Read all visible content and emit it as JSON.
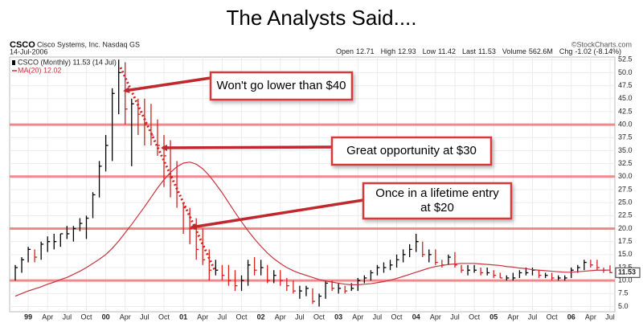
{
  "chart_data": {
    "type": "ohlc",
    "title": "The Analysts Said....",
    "symbol": "CSCO",
    "company": "Cisco Systems, Inc. Nasdaq GS",
    "date": "14-Jul-2006",
    "source": "©StockCharts.com",
    "stats": [
      {
        "label": "Open",
        "value": 12.71
      },
      {
        "label": "High",
        "value": 12.93
      },
      {
        "label": "Low",
        "value": 11.42
      },
      {
        "label": "Last",
        "value": 11.53
      },
      {
        "label": "Volume",
        "value": "562.6M"
      },
      {
        "label": "Chg",
        "value": "-1.02 (-8.14%)"
      }
    ],
    "categories": [
      null,
      null,
      "99",
      null,
      null,
      "Apr",
      null,
      null,
      "Jul",
      null,
      null,
      "Oct",
      null,
      null,
      "00",
      null,
      null,
      "Apr",
      null,
      null,
      "Jul",
      null,
      null,
      "Oct",
      null,
      null,
      "01",
      null,
      null,
      "Apr",
      null,
      null,
      "Jul",
      null,
      null,
      "Oct",
      null,
      null,
      "02",
      null,
      null,
      "Apr",
      null,
      null,
      "Jul",
      null,
      null,
      "Oct",
      null,
      null,
      "03",
      null,
      null,
      "Apr",
      null,
      null,
      "Jul",
      null,
      null,
      "Oct",
      null,
      null,
      "04",
      null,
      null,
      "Apr",
      null,
      null,
      "Jul",
      null,
      null,
      "Oct",
      null,
      null,
      "05",
      null,
      null,
      "Apr",
      null,
      null,
      "Jul",
      null,
      null,
      "Oct",
      null,
      null,
      "06",
      null,
      null,
      "Apr",
      null,
      null,
      "Jul"
    ],
    "series": [
      {
        "name": "CSCO (Monthly) 11.53 (14 Jul)",
        "up_color": "#000000",
        "down_color": "#d42020",
        "high": [
          13,
          14.5,
          16.5,
          16,
          17.5,
          18.5,
          19,
          19,
          20.5,
          20.5,
          22,
          22.5,
          27,
          33,
          38,
          47,
          52.5,
          52,
          45,
          45,
          45,
          44,
          41,
          38,
          37,
          33,
          25,
          24,
          22,
          20,
          16,
          14,
          13,
          13,
          12,
          11,
          14,
          14.5,
          14,
          13,
          12,
          12,
          10.5,
          10,
          9,
          9,
          8.5,
          7.5,
          10,
          10,
          9.5,
          9,
          9.5,
          10.5,
          11,
          12,
          13,
          13.5,
          14,
          15,
          16,
          17,
          19,
          17.5,
          16,
          16,
          14,
          15,
          15.5,
          13,
          13,
          13,
          12.5,
          12.5,
          12,
          11.5,
          11,
          11.5,
          12,
          12.5,
          12.5,
          12,
          11.5,
          11.5,
          11,
          11,
          12.5,
          13,
          14,
          14,
          14,
          12.5,
          12.93
        ],
        "low": [
          10,
          11.5,
          13.5,
          13.5,
          14,
          15.5,
          16,
          16.5,
          18,
          17.5,
          19.5,
          18,
          22,
          26,
          31,
          33,
          42,
          40,
          32,
          38,
          36,
          36,
          34,
          28,
          26,
          24,
          19,
          17,
          14,
          13,
          10,
          11,
          10,
          9,
          8,
          8,
          9,
          11,
          11,
          9.5,
          9.5,
          9,
          8,
          7.5,
          6.5,
          7,
          5.5,
          5,
          6.5,
          8,
          7.5,
          7.5,
          8,
          8,
          9.5,
          10,
          11,
          11.5,
          12,
          12.5,
          13.5,
          14.5,
          15.5,
          14.5,
          13.5,
          13,
          12.5,
          13,
          12.5,
          11.5,
          11,
          11.5,
          11,
          11,
          10.5,
          10.5,
          10,
          10,
          10.5,
          11,
          11,
          10.5,
          10.5,
          10,
          10,
          10,
          10.5,
          11.5,
          12,
          12.5,
          12,
          11.5,
          11.42
        ],
        "close": [
          12.5,
          14,
          16,
          14.5,
          17,
          17.5,
          17.5,
          19,
          19,
          20,
          21,
          22,
          26.5,
          32,
          36,
          46,
          50,
          43,
          44,
          42,
          40,
          38,
          36,
          34,
          30,
          27,
          24,
          20,
          16,
          14,
          12,
          12,
          11,
          10,
          9,
          10,
          13,
          12,
          12.5,
          10,
          11,
          10,
          9,
          8,
          8,
          8.5,
          6,
          7,
          9.5,
          8.5,
          8.5,
          8,
          8.5,
          10,
          10.5,
          11.5,
          12.5,
          12.5,
          13,
          14,
          15,
          16,
          17.5,
          15,
          15,
          13.5,
          13,
          14.5,
          13,
          12,
          12,
          12,
          11.5,
          11.5,
          11,
          10.5,
          10.5,
          10.5,
          11.5,
          11.5,
          12,
          11,
          11,
          10.5,
          10.5,
          10.5,
          12,
          12.5,
          13.5,
          13,
          12.5,
          12,
          11.53
        ]
      },
      {
        "name": "MA(20) 12.02",
        "color": "#c8323c",
        "values": [
          7.0,
          7.5,
          8.0,
          8.4,
          8.8,
          9.3,
          9.7,
          10.2,
          10.6,
          11.2,
          11.8,
          12.5,
          13.3,
          14.1,
          15.0,
          16.2,
          17.6,
          19.2,
          20.8,
          22.5,
          24.2,
          26.0,
          27.8,
          29.4,
          30.8,
          31.9,
          32.6,
          32.8,
          32.4,
          31.5,
          30.2,
          28.6,
          26.9,
          25.0,
          23.1,
          21.3,
          19.6,
          18.0,
          16.6,
          15.3,
          14.2,
          13.3,
          12.5,
          11.9,
          11.4,
          11.0,
          10.6,
          10.2,
          9.9,
          9.7,
          9.5,
          9.3,
          9.2,
          9.2,
          9.3,
          9.4,
          9.6,
          9.8,
          10.1,
          10.4,
          10.8,
          11.2,
          11.6,
          12.0,
          12.4,
          12.7,
          12.9,
          13.1,
          13.2,
          13.3,
          13.3,
          13.3,
          13.2,
          13.1,
          13.0,
          12.9,
          12.7,
          12.6,
          12.4,
          12.3,
          12.1,
          12.0,
          11.9,
          11.8,
          11.7,
          11.6,
          11.6,
          11.7,
          11.8,
          11.9,
          12.0,
          12.0,
          12.02
        ]
      }
    ],
    "ylim": [
      4,
      53
    ],
    "yticks": [
      {
        "value": 5,
        "label": "5.0"
      },
      7.5,
      {
        "value": 10,
        "label": "10.0"
      },
      12.5,
      {
        "value": 15,
        "label": "15.0"
      },
      17.5,
      {
        "value": 20,
        "label": "20.0"
      },
      22.5,
      {
        "value": 25,
        "label": "25.0"
      },
      27.5,
      {
        "value": 30,
        "label": "30.0"
      },
      32.5,
      {
        "value": 35,
        "label": "35.0"
      },
      37.5,
      {
        "value": 40,
        "label": "40.0"
      },
      42.5,
      {
        "value": 45,
        "label": "45.0"
      },
      47.5,
      {
        "value": 50,
        "label": "50.0"
      },
      52.5
    ],
    "grid": true,
    "reference_lines": [
      40,
      30,
      20,
      10
    ],
    "reference_color": "#f07878",
    "annotations": [
      {
        "lines": [
          "Won't go lower than $40"
        ]
      },
      {
        "lines": [
          "Great opportunity at $30"
        ]
      },
      {
        "lines": [
          "Once in a lifetime entry",
          "at $20"
        ]
      }
    ]
  }
}
